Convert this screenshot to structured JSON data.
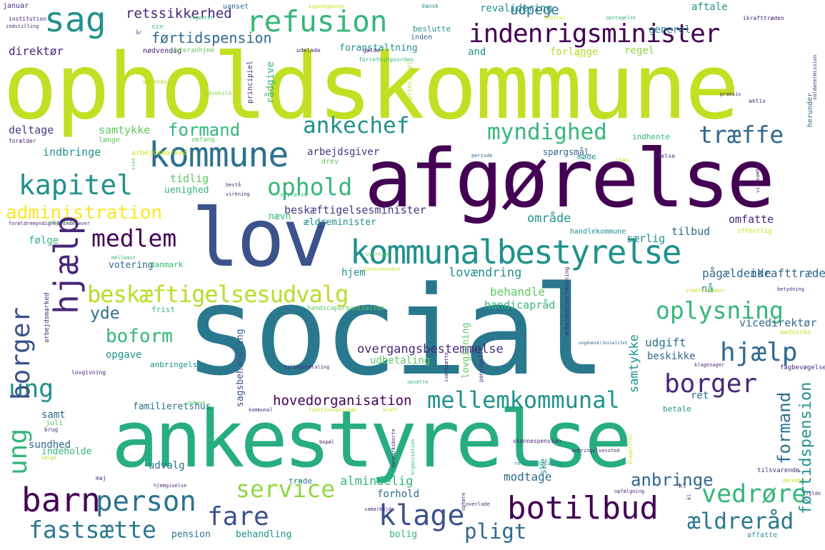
{
  "palette": {
    "dark_purple": "#440154",
    "indigo": "#3b528b",
    "blue": "#31688e",
    "teal": "#21918c",
    "green": "#35b779",
    "light_green": "#5ec962",
    "lime": "#90d743",
    "yellow_green": "#b5de2b",
    "yellow": "#c8e020"
  },
  "words": [
    "opholdskommune",
    "afgørelse",
    "social",
    "ankestyrelse",
    "lov",
    "kommunalbestyrelse",
    "indenrigsminister",
    "refusion",
    "sag",
    "kommune",
    "ankechef",
    "myndighed",
    "træffe",
    "kapitel",
    "ophold",
    "administration",
    "medlem",
    "beskæftigelsesudvalg",
    "oplysning",
    "hjælp",
    "borger",
    "ung",
    "barn",
    "person",
    "fastsætte",
    "fare",
    "klage",
    "botilbud",
    "ældreråd",
    "pligt",
    "service",
    "vedrøre",
    "mellemkommunal",
    "boform",
    "yde",
    "førtidspension",
    "formand",
    "retssikkerhed",
    "udpege",
    "regel",
    "område",
    "lovændring",
    "pågældende",
    "ikrafttrædelse",
    "beskæftigelsesminister",
    "hovedorganisation",
    "overgangsbestemmelse",
    "udgift",
    "behandle",
    "handicapråd",
    "vicedirektør",
    "direktør",
    "deltage",
    "samtykke",
    "indbringe",
    "tidlig",
    "uenighed",
    "arbejdsgiver",
    "særlig",
    "tilbud",
    "omfatte",
    "følge",
    "opgave",
    "anbringelse",
    "samt",
    "sundhed",
    "indeholde",
    "udvalg",
    "almindelig",
    "forhold",
    "modtage",
    "anbringe",
    "bolig",
    "pension",
    "behandling",
    "ret",
    "udbetaling",
    "nå",
    "hjem",
    "beskikke",
    "ældreminister",
    "nævn",
    "votering",
    "danmark",
    "frist",
    "indhente",
    "spørgsmål",
    "møde",
    "and",
    "forlange",
    "foranstaltning",
    "rådgive",
    "nødvendig",
    "veteranhjem",
    "udelade",
    "gælde",
    "beslutte",
    "inden",
    "aftale",
    "revalidering",
    "generel",
    "uanset",
    "januar",
    "institution",
    "indstilling",
    "sin",
    "år",
    "sygedagpenge",
    "dansk",
    "kontrol",
    "opstagelse",
    "ikrafttræden",
    "senest",
    "omfang",
    "forretningsorden",
    "anvendelse",
    "udveksle",
    "principiel",
    "hav",
    "soldatermission",
    "praksis",
    "give",
    "aktiv",
    "herunder",
    "undersøgelse",
    "forælder",
    "arbejdsmarked",
    "længe",
    "drev",
    "periode",
    "ydelse",
    "virksomhed",
    "kfums",
    "bestå",
    "virkning",
    "styrelse",
    "forældremyndighedsindehaver",
    "afgjort",
    "mellemst",
    "overtage",
    "handlekommune",
    "offentlig",
    "pensionsnævn",
    "stedfortræder",
    "betydning",
    "handicaporganisation",
    "arbejdsmarked",
    "lovgivning",
    "sagsbehandling",
    "iværksætte",
    "pensionist",
    "arbejdsgiverforening",
    "ungdomskriminalitet",
    "klagesager",
    "medvirke",
    "fagbevægelse",
    "tilbagebetaling",
    "opsætte",
    "ophæve",
    "kommunal",
    "funktionsperiode",
    "kraft",
    "betale",
    "brug",
    "vælge",
    "bopæl",
    "danmarkskorte",
    "skønnespension",
    "ske",
    "anbringelsessted",
    "klagefrist",
    "organisation",
    "maj",
    "hjemgivelse",
    "trade",
    "overlade",
    "samarbejde",
    "refusionspligtig",
    "opfølgning",
    "tilsvarende",
    "december",
    "fylde",
    "affatte",
    "kl",
    "ophøre",
    "familieretshus",
    "juli",
    "fogedret",
    "sted",
    "boligstøtte",
    "juni",
    "afgøre",
    "beskæftigelsesindsats",
    "finde",
    "unde",
    "lønmodtager",
    "selvstændig"
  ]
}
